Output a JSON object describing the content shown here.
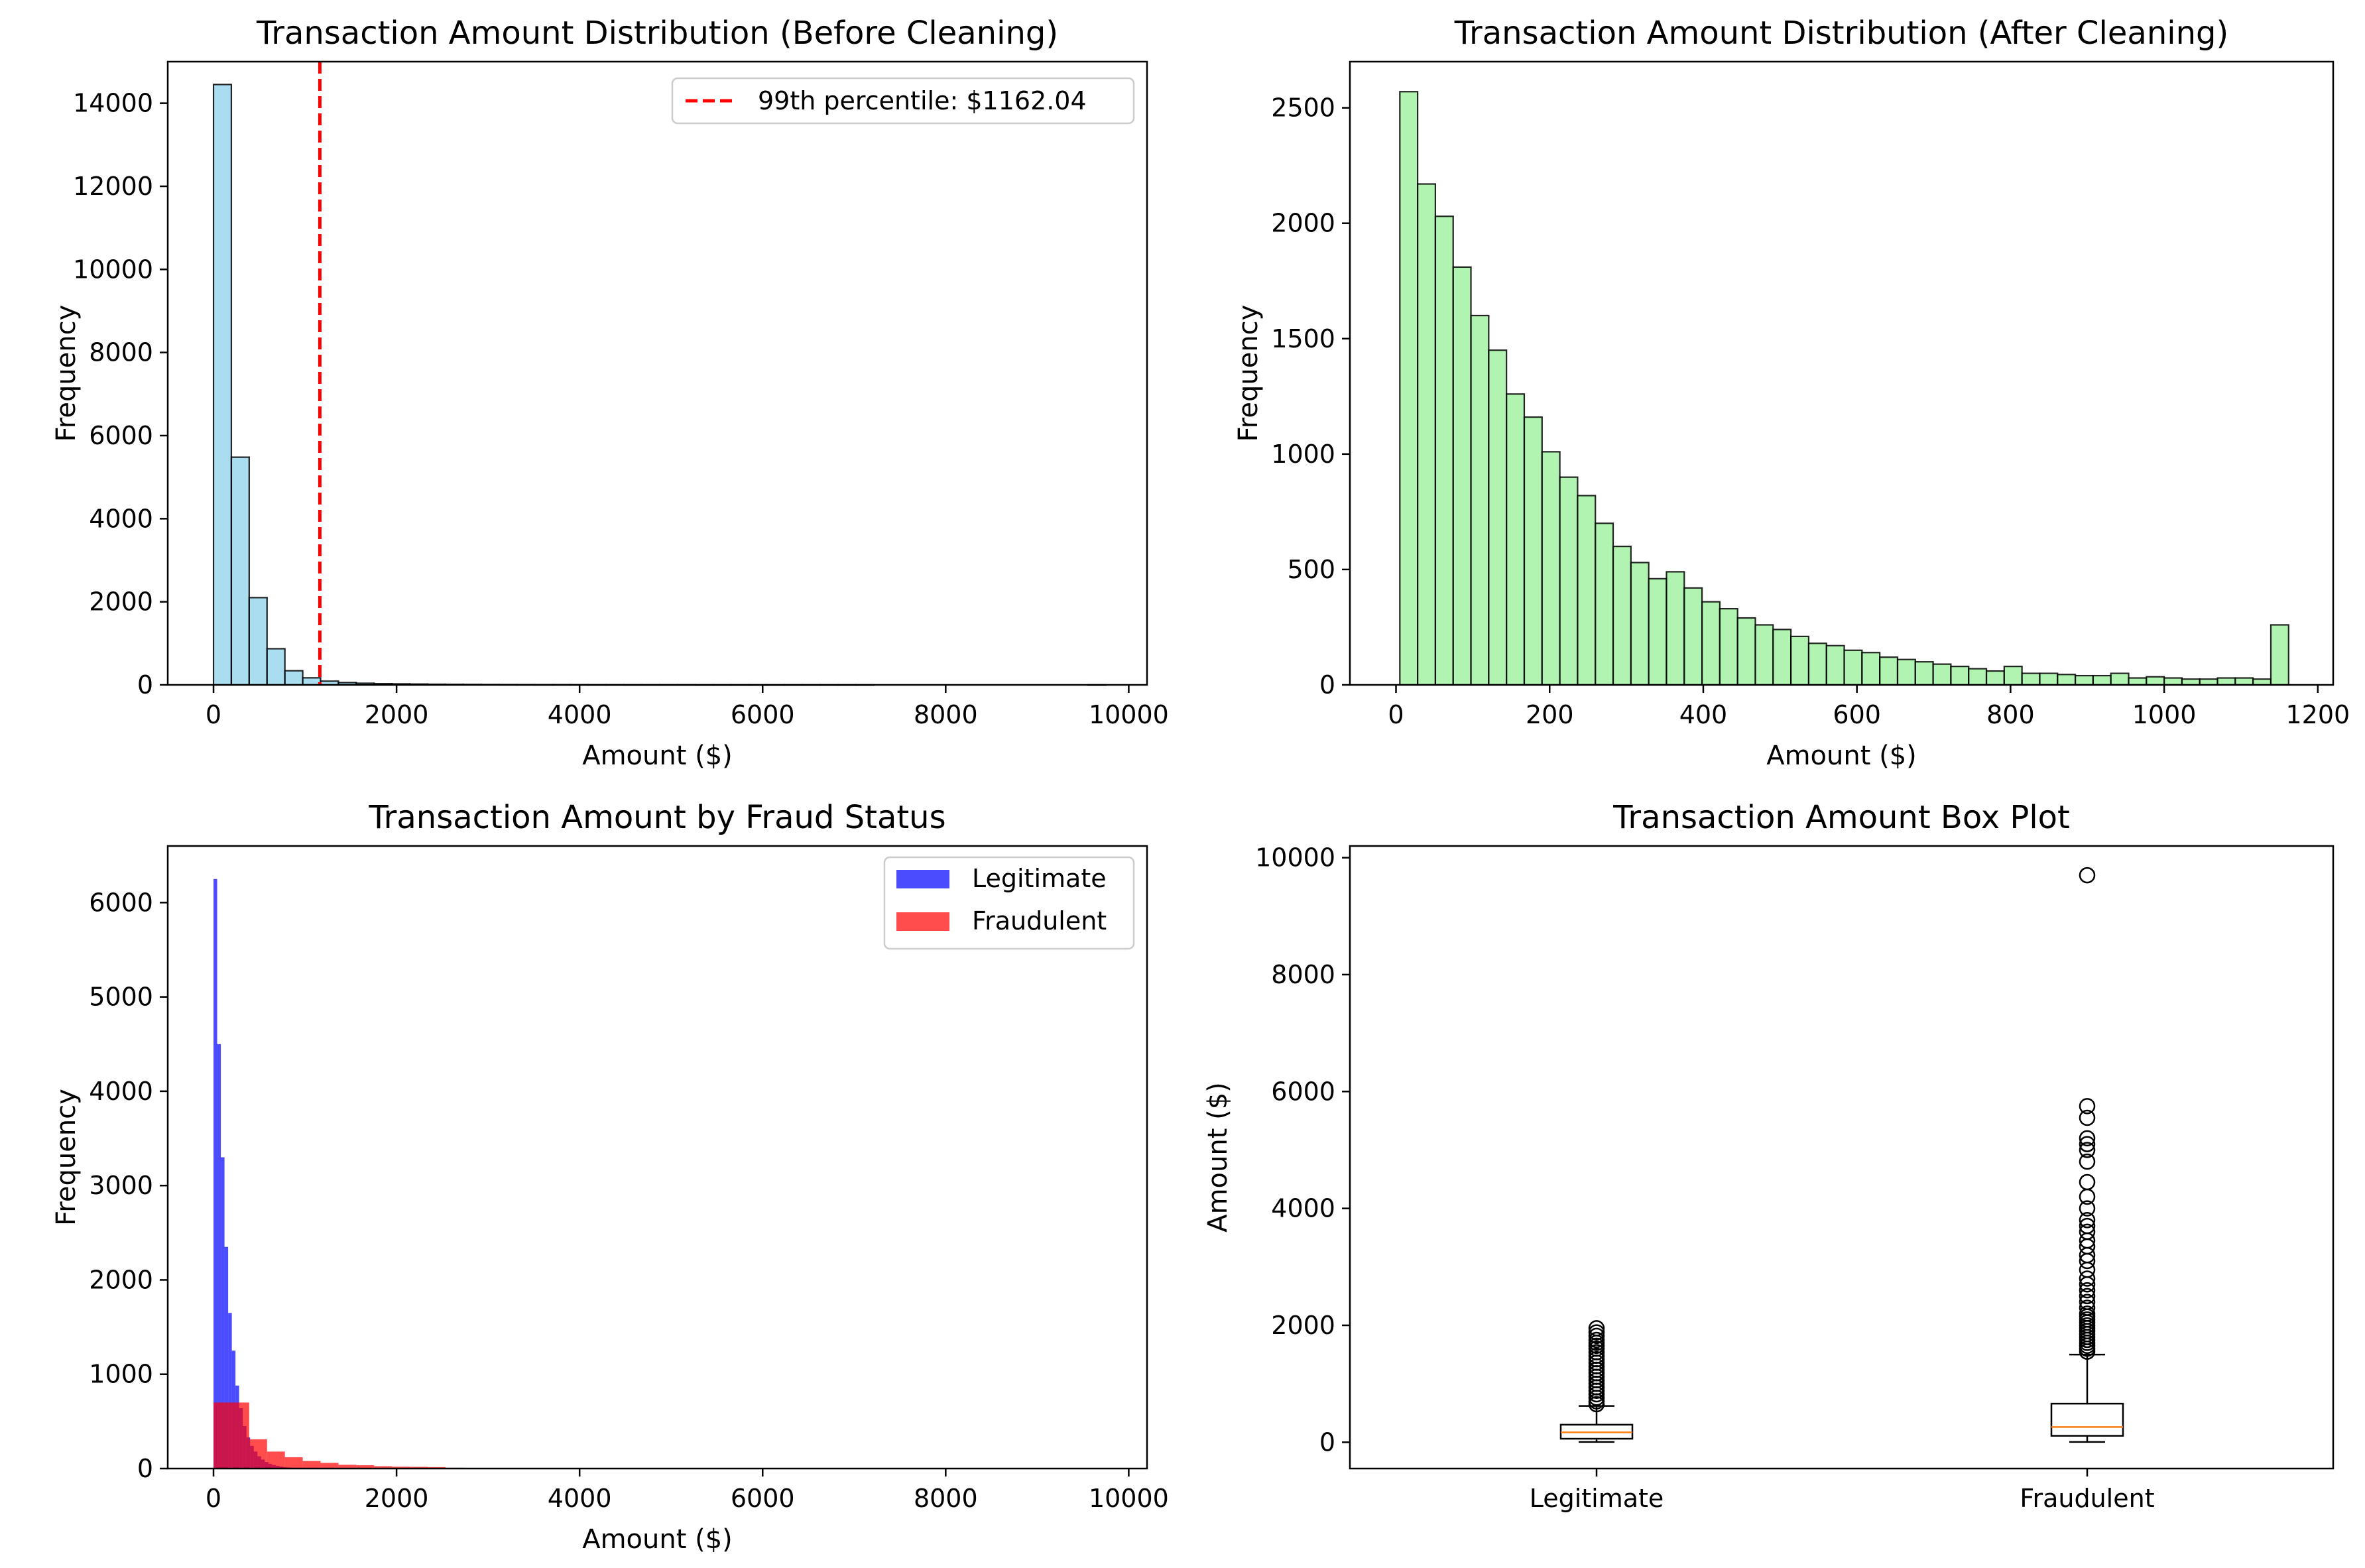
{
  "chart_data": [
    {
      "type": "bar",
      "title": "Transaction Amount Distribution (Before Cleaning)",
      "xlabel": "Amount ($)",
      "ylabel": "Frequency",
      "xlim": [
        -500,
        10200
      ],
      "ylim": [
        0,
        15000
      ],
      "xticks": [
        0,
        2000,
        4000,
        6000,
        8000,
        10000
      ],
      "yticks": [
        0,
        2000,
        4000,
        6000,
        8000,
        10000,
        12000,
        14000
      ],
      "grid": false,
      "legend": "top-right",
      "bin_start": 0,
      "bin_width": 195,
      "values": [
        14450,
        5480,
        2100,
        870,
        340,
        170,
        90,
        55,
        40,
        30,
        25,
        20,
        15,
        12,
        10,
        8,
        7,
        6,
        5,
        5,
        4,
        3,
        3,
        2,
        2,
        2,
        2,
        1,
        1,
        1,
        1,
        1,
        1,
        1,
        1,
        1,
        1,
        0,
        0,
        0,
        0,
        0,
        0,
        0,
        0,
        0,
        0,
        0,
        0,
        1
      ],
      "color": "#87CEEB",
      "edge_color": "#000000",
      "reference_line": {
        "x": 1162.04,
        "label": "99th percentile: $1162.04",
        "color": "#ff0000"
      }
    },
    {
      "type": "bar",
      "title": "Transaction Amount Distribution (After Cleaning)",
      "xlabel": "Amount ($)",
      "ylabel": "Frequency",
      "xlim": [
        -60,
        1220
      ],
      "ylim": [
        0,
        2700
      ],
      "xticks": [
        0,
        200,
        400,
        600,
        800,
        1000,
        1200
      ],
      "yticks": [
        0,
        500,
        1000,
        1500,
        2000,
        2500
      ],
      "grid": false,
      "bin_start": 5,
      "bin_width": 23.14,
      "values": [
        2570,
        2170,
        2030,
        1810,
        1600,
        1450,
        1260,
        1160,
        1010,
        900,
        820,
        700,
        600,
        530,
        460,
        490,
        420,
        360,
        330,
        290,
        260,
        240,
        210,
        180,
        170,
        150,
        140,
        120,
        110,
        100,
        90,
        80,
        70,
        60,
        80,
        50,
        50,
        45,
        40,
        40,
        50,
        30,
        35,
        30,
        25,
        25,
        30,
        30,
        25,
        260
      ],
      "color": "#90EE90",
      "edge_color": "#000000"
    },
    {
      "type": "bar",
      "title": "Transaction Amount by Fraud Status",
      "xlabel": "Amount ($)",
      "ylabel": "Frequency",
      "xlim": [
        -500,
        10200
      ],
      "ylim": [
        0,
        6600
      ],
      "xticks": [
        0,
        2000,
        4000,
        6000,
        8000,
        10000
      ],
      "yticks": [
        0,
        1000,
        2000,
        3000,
        4000,
        5000,
        6000
      ],
      "grid": false,
      "legend": "top-right",
      "series": [
        {
          "name": "Legitimate",
          "color": "#0000ff",
          "bin_start": 0,
          "bin_width": 40,
          "values": [
            6250,
            4500,
            3300,
            2350,
            1650,
            1250,
            880,
            640,
            450,
            330,
            240,
            180,
            130,
            95,
            70,
            50,
            38,
            28,
            20,
            15,
            11,
            8,
            6,
            4,
            3,
            2,
            2,
            1,
            1,
            1,
            1,
            1,
            1,
            1,
            1,
            1,
            1,
            1,
            1,
            1,
            1,
            1,
            1,
            1,
            1,
            1,
            1,
            1,
            1,
            1
          ]
        },
        {
          "name": "Fraudulent",
          "color": "#ff0000",
          "bin_start": 0,
          "bin_width": 195,
          "values": [
            700,
            700,
            310,
            180,
            120,
            80,
            60,
            40,
            35,
            25,
            20,
            18,
            15,
            8,
            5,
            4,
            3,
            3,
            2,
            2,
            2,
            2,
            1,
            1,
            1,
            1,
            1,
            1,
            1,
            1,
            0,
            0,
            0,
            0,
            0,
            0,
            0,
            0,
            0,
            0,
            0,
            0,
            0,
            0,
            0,
            0,
            0,
            0,
            0,
            1
          ]
        }
      ]
    },
    {
      "type": "box",
      "title": "Transaction Amount Box Plot",
      "xlabel": "",
      "ylabel": "Amount ($)",
      "ylim": [
        -450,
        10200
      ],
      "yticks": [
        0,
        2000,
        4000,
        6000,
        8000,
        10000
      ],
      "categories": [
        "Legitimate",
        "Fraudulent"
      ],
      "grid": false,
      "boxes": [
        {
          "name": "Legitimate",
          "whisker_low": 5,
          "q1": 60,
          "median": 170,
          "q3": 300,
          "whisker_high": 620,
          "outliers": [
            650,
            700,
            760,
            820,
            880,
            940,
            1000,
            1060,
            1120,
            1180,
            1240,
            1300,
            1360,
            1420,
            1480,
            1540,
            1600,
            1650,
            1700,
            1750,
            1820,
            1880,
            1950
          ]
        },
        {
          "name": "Fraudulent",
          "whisker_low": 5,
          "q1": 110,
          "median": 260,
          "q3": 660,
          "whisker_high": 1500,
          "outliers": [
            1550,
            1600,
            1650,
            1700,
            1750,
            1800,
            1850,
            1900,
            1950,
            2000,
            2050,
            2100,
            2150,
            2200,
            2300,
            2400,
            2500,
            2600,
            2700,
            2800,
            2950,
            3100,
            3200,
            3350,
            3450,
            3600,
            3700,
            3800,
            4000,
            4200,
            4450,
            4800,
            5000,
            5100,
            5200,
            5550,
            5750,
            9700
          ]
        }
      ]
    }
  ]
}
